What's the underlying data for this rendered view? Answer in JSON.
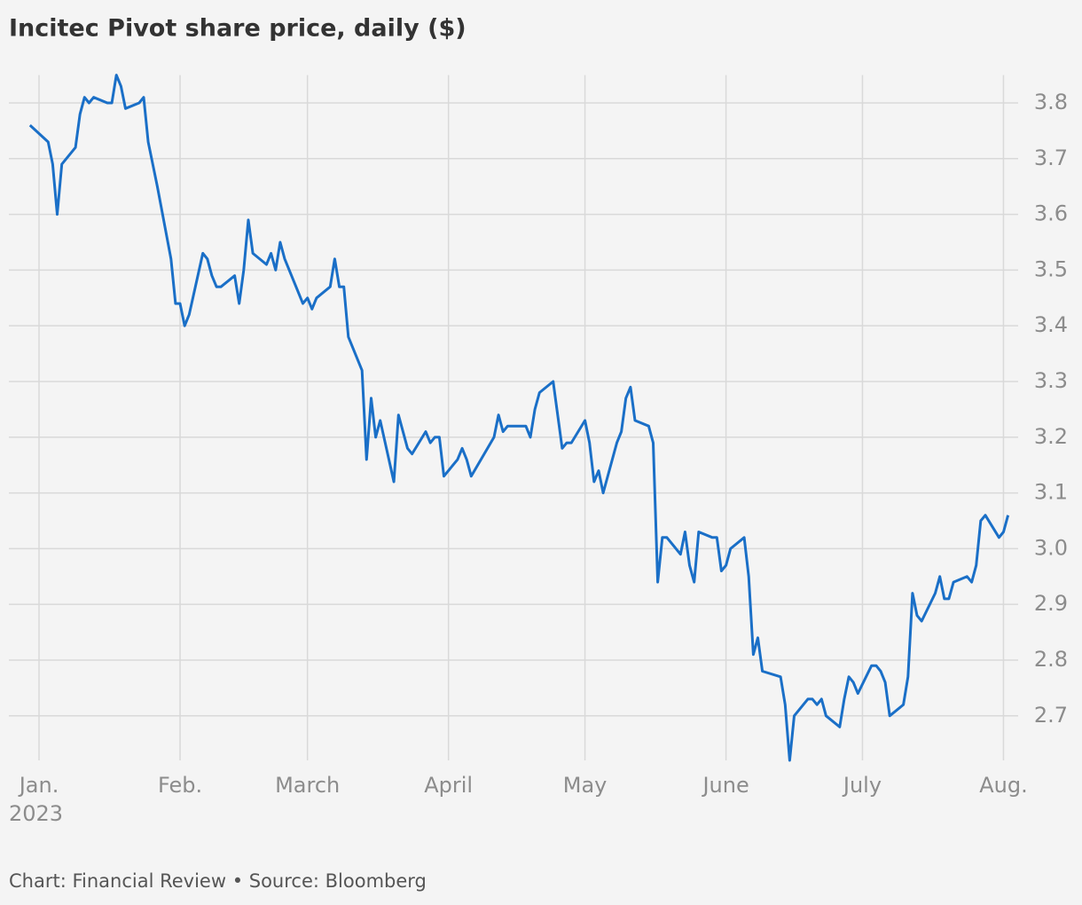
{
  "chart_data": {
    "type": "line",
    "title": "Incitec Pivot share price, daily ($)",
    "source": "Chart: Financial Review • Source: Bloomberg",
    "year_label": "2023",
    "x": [
      -2,
      2,
      3,
      4,
      5,
      8,
      9,
      10,
      11,
      12,
      15,
      16,
      17,
      18,
      19,
      22,
      23,
      24,
      26,
      29,
      30,
      31,
      32,
      33,
      36,
      37,
      38,
      39,
      40,
      43,
      44,
      45,
      46,
      47,
      50,
      51,
      52,
      53,
      54,
      58,
      59,
      60,
      61,
      64,
      65,
      66,
      67,
      68,
      71,
      72,
      73,
      74,
      75,
      78,
      79,
      81,
      82,
      85,
      86,
      87,
      88,
      89,
      92,
      93,
      94,
      95,
      100,
      101,
      102,
      103,
      107,
      108,
      109,
      110,
      113,
      115,
      116,
      117,
      120,
      121,
      122,
      123,
      124,
      127,
      128,
      129,
      130,
      131,
      134,
      135,
      136,
      137,
      138,
      141,
      142,
      143,
      144,
      145,
      148,
      149,
      150,
      151,
      152,
      155,
      156,
      157,
      158,
      159,
      163,
      164,
      165,
      166,
      169,
      170,
      171,
      172,
      173,
      176,
      177,
      178,
      179,
      180,
      183,
      184,
      185,
      186,
      187,
      190,
      191,
      192,
      193,
      194,
      197,
      198,
      199,
      200,
      201,
      204,
      205,
      206,
      207,
      208,
      211,
      212,
      213
    ],
    "series": [
      {
        "name": "Incitec Pivot",
        "color": "#1a6fc7",
        "values": [
          3.76,
          3.73,
          3.69,
          3.6,
          3.69,
          3.72,
          3.78,
          3.81,
          3.8,
          3.81,
          3.8,
          3.8,
          3.85,
          3.83,
          3.79,
          3.8,
          3.81,
          3.73,
          3.65,
          3.52,
          3.44,
          3.44,
          3.4,
          3.42,
          3.53,
          3.52,
          3.49,
          3.47,
          3.47,
          3.49,
          3.44,
          3.5,
          3.59,
          3.53,
          3.51,
          3.53,
          3.5,
          3.55,
          3.52,
          3.44,
          3.45,
          3.43,
          3.45,
          3.47,
          3.52,
          3.47,
          3.47,
          3.38,
          3.32,
          3.16,
          3.27,
          3.2,
          3.23,
          3.12,
          3.24,
          3.18,
          3.17,
          3.21,
          3.19,
          3.2,
          3.2,
          3.13,
          3.16,
          3.18,
          3.16,
          3.13,
          3.2,
          3.24,
          3.21,
          3.22,
          3.22,
          3.2,
          3.25,
          3.28,
          3.3,
          3.18,
          3.19,
          3.19,
          3.23,
          3.19,
          3.12,
          3.14,
          3.1,
          3.19,
          3.21,
          3.27,
          3.29,
          3.23,
          3.22,
          3.19,
          2.94,
          3.02,
          3.02,
          2.99,
          3.03,
          2.97,
          2.94,
          3.03,
          3.02,
          3.02,
          2.96,
          2.97,
          3.0,
          3.02,
          2.95,
          2.81,
          2.84,
          2.78,
          2.77,
          2.72,
          2.62,
          2.7,
          2.73,
          2.73,
          2.72,
          2.73,
          2.7,
          2.68,
          2.73,
          2.77,
          2.76,
          2.74,
          2.79,
          2.79,
          2.78,
          2.76,
          2.7,
          2.72,
          2.77,
          2.92,
          2.88,
          2.87,
          2.92,
          2.95,
          2.91,
          2.91,
          2.94,
          2.95,
          2.94,
          2.97,
          3.05,
          3.06,
          3.02,
          3.03,
          3.06
        ]
      }
    ],
    "xlim": [
      -4,
      216
    ],
    "xticks": [
      {
        "value": 0,
        "label": "Jan."
      },
      {
        "value": 31,
        "label": "Feb."
      },
      {
        "value": 59,
        "label": "March"
      },
      {
        "value": 90,
        "label": "April"
      },
      {
        "value": 120,
        "label": "May"
      },
      {
        "value": 151,
        "label": "June"
      },
      {
        "value": 181,
        "label": "July"
      },
      {
        "value": 212,
        "label": "Aug."
      }
    ],
    "ylim": [
      2.62,
      3.85
    ],
    "yticks": [
      2.7,
      2.8,
      2.9,
      {
        "value": 3,
        "label": "3.0"
      },
      3.1,
      3.2,
      3.3,
      3.4,
      3.5,
      3.6,
      3.7,
      3.8
    ],
    "grid": true
  }
}
